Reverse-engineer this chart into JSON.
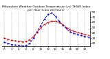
{
  "title": "Milwaukee Weather Outdoor Temperature (vs) THSW Index per Hour (Last 24 Hours)",
  "title_fontsize": 3.2,
  "background_color": "#ffffff",
  "grid_color": "#888888",
  "hours": [
    0,
    1,
    2,
    3,
    4,
    5,
    6,
    7,
    8,
    9,
    10,
    11,
    12,
    13,
    14,
    15,
    16,
    17,
    18,
    19,
    20,
    21,
    22,
    23
  ],
  "temp": [
    30,
    28,
    26,
    25,
    24,
    23,
    24,
    27,
    33,
    41,
    49,
    56,
    60,
    62,
    62,
    60,
    56,
    50,
    46,
    43,
    41,
    39,
    37,
    36
  ],
  "thsw": [
    22,
    20,
    18,
    17,
    16,
    15,
    16,
    20,
    30,
    42,
    54,
    66,
    75,
    78,
    72,
    62,
    55,
    48,
    42,
    39,
    37,
    35,
    33,
    32
  ],
  "temp_color": "#dd0000",
  "thsw_color": "#0000ee",
  "ylim": [
    15,
    80
  ],
  "xlim": [
    -0.5,
    23.5
  ],
  "yticks": [
    20,
    30,
    40,
    50,
    60,
    70,
    80
  ],
  "ytick_labels": [
    "20",
    "30",
    "40",
    "50",
    "60",
    "70",
    "80"
  ],
  "xtick_positions": [
    0,
    2,
    4,
    6,
    8,
    10,
    12,
    14,
    16,
    18,
    20,
    22
  ],
  "xtick_labels": [
    "0",
    "2",
    "4",
    "6",
    "8",
    "10",
    "12",
    "14",
    "16",
    "18",
    "20",
    "22"
  ],
  "tick_fontsize": 3.0,
  "line_width": 0.7,
  "marker_size": 1.2,
  "grid_linewidth": 0.35,
  "spine_linewidth": 0.5
}
